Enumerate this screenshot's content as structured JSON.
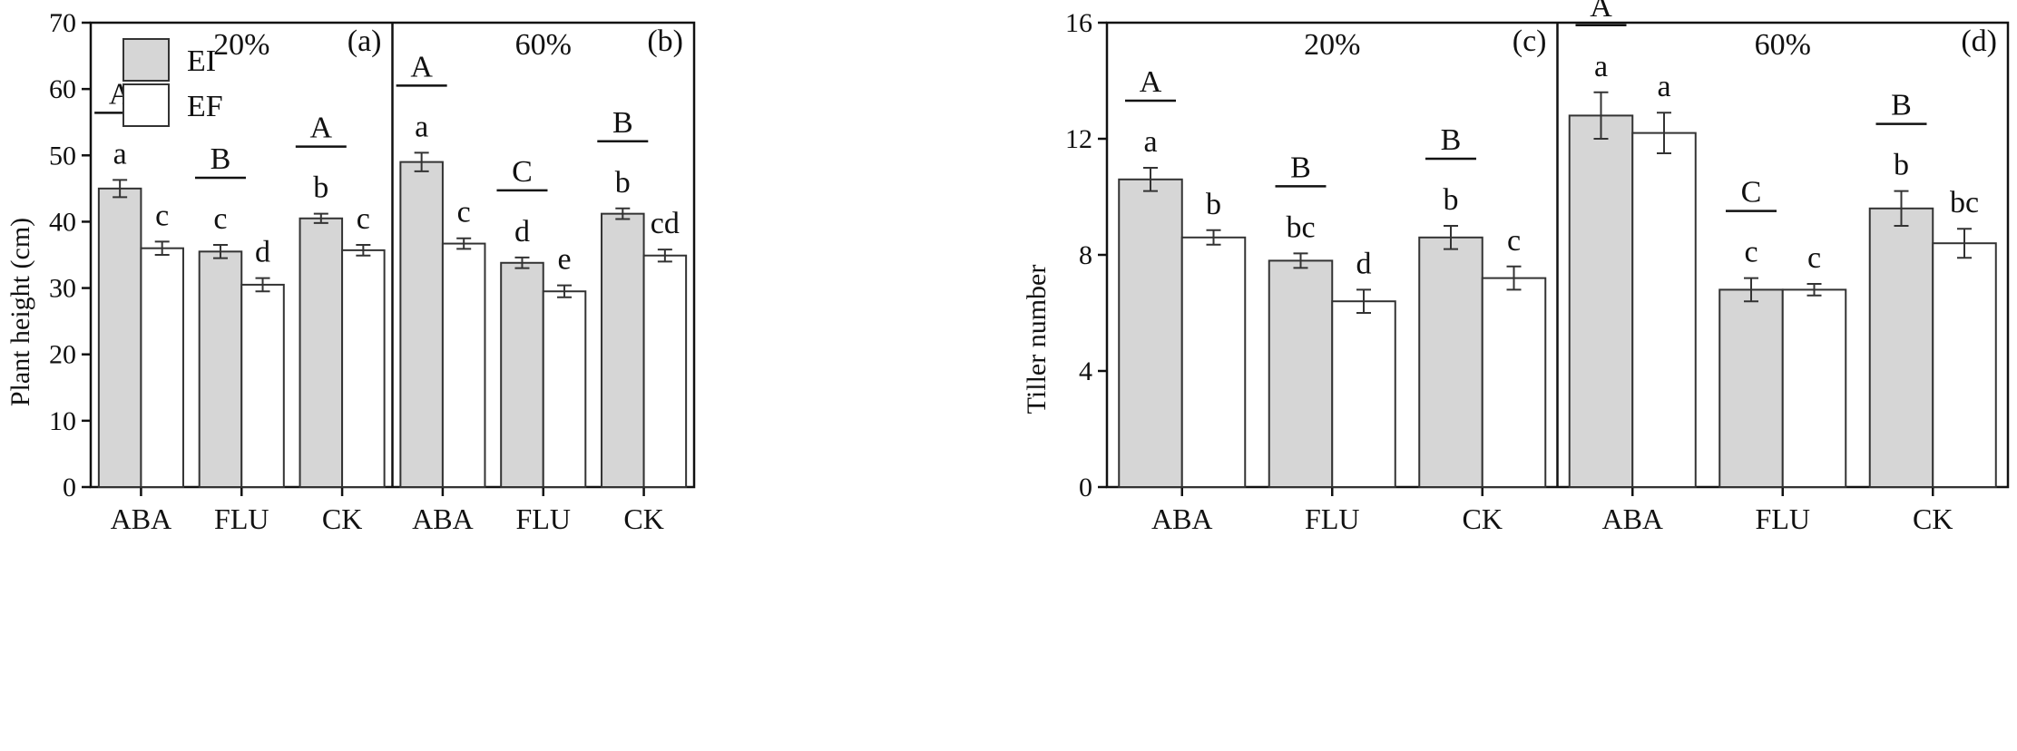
{
  "chart_data": [
    {
      "type": "bar",
      "ylabel": "Plant height (cm)",
      "ylim": [
        0,
        70
      ],
      "yticks": [
        0,
        10,
        20,
        30,
        40,
        50,
        60,
        70
      ],
      "legend": {
        "position": "top-left",
        "entries": [
          "EI",
          "EF"
        ]
      },
      "panels": [
        {
          "id": "(a)",
          "treatment": "20%",
          "groups": [
            {
              "category": "ABA",
              "group_letter": "A",
              "bars": [
                {
                  "series": "EI",
                  "value": 45.0,
                  "error": 1.3,
                  "letter": "a"
                },
                {
                  "series": "EF",
                  "value": 36.0,
                  "error": 1.0,
                  "letter": "c"
                }
              ]
            },
            {
              "category": "FLU",
              "group_letter": "B",
              "bars": [
                {
                  "series": "EI",
                  "value": 35.5,
                  "error": 1.0,
                  "letter": "c"
                },
                {
                  "series": "EF",
                  "value": 30.5,
                  "error": 1.0,
                  "letter": "d"
                }
              ]
            },
            {
              "category": "CK",
              "group_letter": "A",
              "bars": [
                {
                  "series": "EI",
                  "value": 40.5,
                  "error": 0.7,
                  "letter": "b"
                },
                {
                  "series": "EF",
                  "value": 35.7,
                  "error": 0.8,
                  "letter": "c"
                }
              ]
            }
          ]
        },
        {
          "id": "(b)",
          "treatment": "60%",
          "groups": [
            {
              "category": "ABA",
              "group_letter": "A",
              "bars": [
                {
                  "series": "EI",
                  "value": 49.0,
                  "error": 1.4,
                  "letter": "a"
                },
                {
                  "series": "EF",
                  "value": 36.7,
                  "error": 0.8,
                  "letter": "c"
                }
              ]
            },
            {
              "category": "FLU",
              "group_letter": "C",
              "bars": [
                {
                  "series": "EI",
                  "value": 33.8,
                  "error": 0.8,
                  "letter": "d"
                },
                {
                  "series": "EF",
                  "value": 29.5,
                  "error": 0.9,
                  "letter": "e"
                }
              ]
            },
            {
              "category": "CK",
              "group_letter": "B",
              "bars": [
                {
                  "series": "EI",
                  "value": 41.2,
                  "error": 0.8,
                  "letter": "b"
                },
                {
                  "series": "EF",
                  "value": 34.9,
                  "error": 0.9,
                  "letter": "cd"
                }
              ]
            }
          ]
        }
      ]
    },
    {
      "type": "bar",
      "ylabel": "Tiller number",
      "ylim": [
        0,
        16
      ],
      "yticks": [
        0,
        4,
        8,
        12,
        16
      ],
      "panels": [
        {
          "id": "(c)",
          "treatment": "20%",
          "groups": [
            {
              "category": "ABA",
              "group_letter": "A",
              "bars": [
                {
                  "series": "EI",
                  "value": 10.6,
                  "error": 0.4,
                  "letter": "a"
                },
                {
                  "series": "EF",
                  "value": 8.6,
                  "error": 0.25,
                  "letter": "b"
                }
              ]
            },
            {
              "category": "FLU",
              "group_letter": "B",
              "bars": [
                {
                  "series": "EI",
                  "value": 7.8,
                  "error": 0.25,
                  "letter": "bc"
                },
                {
                  "series": "EF",
                  "value": 6.4,
                  "error": 0.4,
                  "letter": "d"
                }
              ]
            },
            {
              "category": "CK",
              "group_letter": "B",
              "bars": [
                {
                  "series": "EI",
                  "value": 8.6,
                  "error": 0.4,
                  "letter": "b"
                },
                {
                  "series": "EF",
                  "value": 7.2,
                  "error": 0.4,
                  "letter": "c"
                }
              ]
            }
          ]
        },
        {
          "id": "(d)",
          "treatment": "60%",
          "groups": [
            {
              "category": "ABA",
              "group_letter": "A",
              "bars": [
                {
                  "series": "EI",
                  "value": 12.8,
                  "error": 0.8,
                  "letter": "a"
                },
                {
                  "series": "EF",
                  "value": 12.2,
                  "error": 0.7,
                  "letter": "a"
                }
              ]
            },
            {
              "category": "FLU",
              "group_letter": "C",
              "bars": [
                {
                  "series": "EI",
                  "value": 6.8,
                  "error": 0.4,
                  "letter": "c"
                },
                {
                  "series": "EF",
                  "value": 6.8,
                  "error": 0.2,
                  "letter": "c"
                }
              ]
            },
            {
              "category": "CK",
              "group_letter": "B",
              "bars": [
                {
                  "series": "EI",
                  "value": 9.6,
                  "error": 0.6,
                  "letter": "b"
                },
                {
                  "series": "EF",
                  "value": 8.4,
                  "error": 0.5,
                  "letter": "bc"
                }
              ]
            }
          ]
        }
      ]
    }
  ]
}
